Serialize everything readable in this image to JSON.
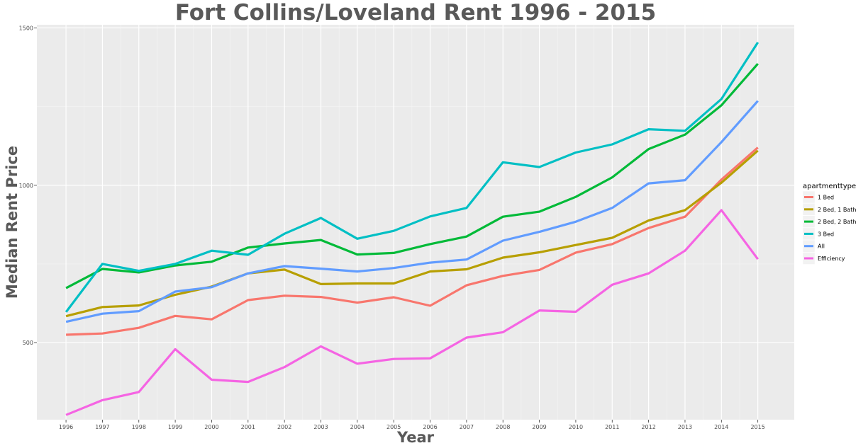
{
  "chart_data": {
    "type": "line",
    "title": "Fort Collins/Loveland Rent 1996 - 2015",
    "xlabel": "Year",
    "ylabel": "Median Rent Price",
    "x": [
      1996,
      1997,
      1998,
      1999,
      2000,
      2001,
      2002,
      2003,
      2004,
      2005,
      2006,
      2007,
      2008,
      2009,
      2010,
      2011,
      2012,
      2013,
      2014,
      2015
    ],
    "xlim": [
      1995.2,
      2016.0
    ],
    "ylim": [
      255,
      1510
    ],
    "yticks": [
      500,
      1000,
      1500
    ],
    "grid": true,
    "legend": {
      "title": "apartmenttype",
      "position": "right"
    },
    "series": [
      {
        "name": "1 Bed",
        "color": "#F8766D",
        "values": [
          525,
          529,
          547,
          585,
          574,
          635,
          649,
          645,
          627,
          644,
          617,
          682,
          712,
          731,
          786,
          813,
          864,
          900,
          1018,
          1120
        ]
      },
      {
        "name": "2 Bed, 1 Bath",
        "color": "#B79F00",
        "values": [
          584,
          613,
          618,
          652,
          678,
          720,
          732,
          686,
          688,
          688,
          726,
          733,
          770,
          787,
          810,
          833,
          888,
          921,
          1008,
          1110
        ]
      },
      {
        "name": "2 Bed, 2 Bath",
        "color": "#00BA38",
        "values": [
          673,
          734,
          723,
          745,
          757,
          802,
          815,
          826,
          780,
          785,
          813,
          837,
          900,
          916,
          963,
          1025,
          1115,
          1161,
          1254,
          1386
        ]
      },
      {
        "name": "3 Bed",
        "color": "#00BFC4",
        "values": [
          597,
          750,
          728,
          750,
          792,
          779,
          846,
          896,
          830,
          855,
          901,
          928,
          1073,
          1058,
          1104,
          1130,
          1178,
          1173,
          1274,
          1454
        ]
      },
      {
        "name": "All",
        "color": "#619CFF",
        "values": [
          566,
          592,
          600,
          662,
          676,
          720,
          743,
          735,
          726,
          737,
          754,
          764,
          824,
          852,
          884,
          928,
          1006,
          1016,
          1137,
          1268
        ]
      },
      {
        "name": "Efficiency",
        "color": "#F564E3",
        "values": [
          270,
          317,
          343,
          479,
          382,
          375,
          422,
          488,
          433,
          448,
          450,
          516,
          533,
          602,
          598,
          684,
          720,
          792,
          921,
          765
        ]
      }
    ]
  }
}
